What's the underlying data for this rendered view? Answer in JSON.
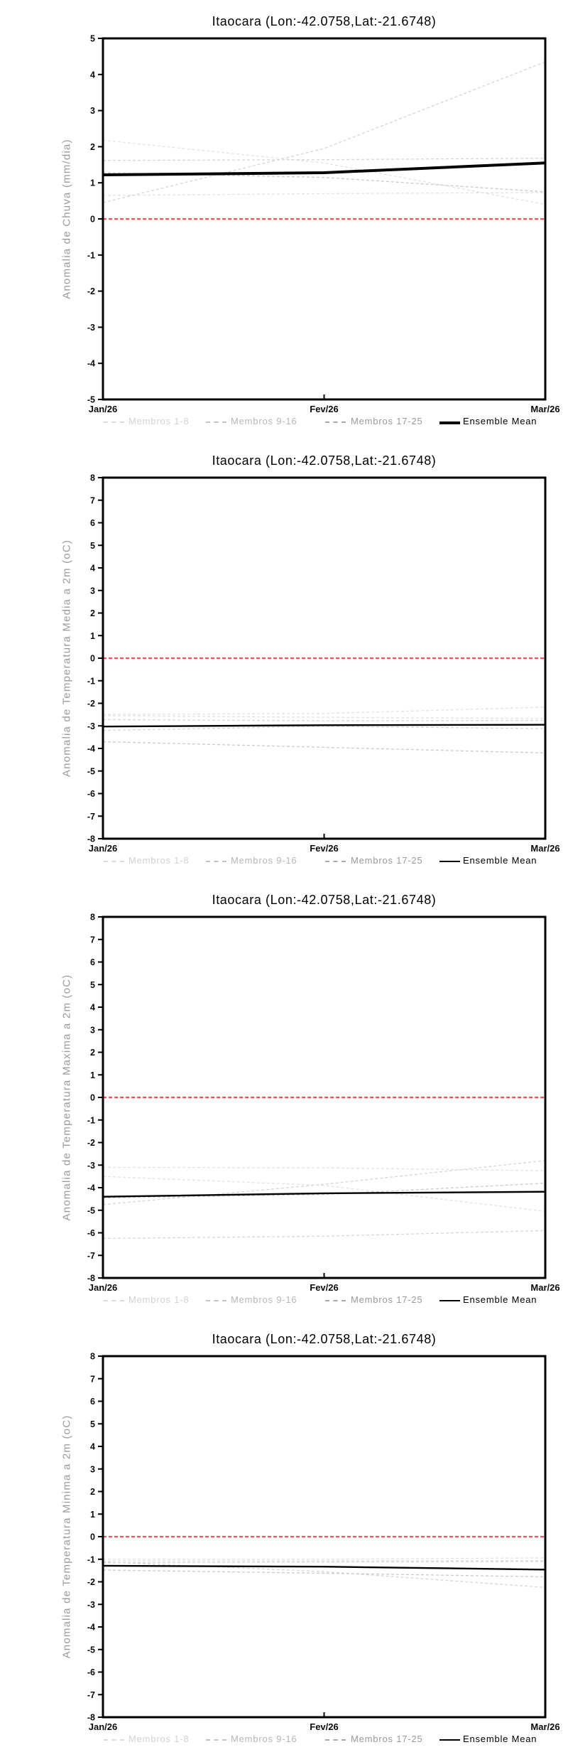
{
  "page": {
    "background": "#ffffff"
  },
  "legend": {
    "items": [
      {
        "label": "Membros 1-8",
        "line_color": "#dcdcdc",
        "text_color": "#d2d2d2",
        "style": "dashed"
      },
      {
        "label": "Membros 9-16",
        "line_color": "#c3c3c3",
        "text_color": "#b7b7b7",
        "style": "dashed"
      },
      {
        "label": "Membros 17-25",
        "line_color": "#a9a9a9",
        "text_color": "#9a9a9a",
        "style": "dashed"
      },
      {
        "label": "Ensemble Mean",
        "line_color": "#000000",
        "text_color": "#000000",
        "style": "solid"
      }
    ]
  },
  "chart_data": [
    {
      "type": "line",
      "title": "Itaocara (Lon:-42.0758,Lat:-21.6748)",
      "ylabel": "Anomalia de Chuva (mm/dia)",
      "ylim": [
        -5,
        5
      ],
      "ytick_step": 1,
      "x": [
        "Jan/26",
        "Fev/26",
        "Mar/26"
      ],
      "zero_line": {
        "value": 0,
        "color": "#f85454"
      },
      "mean_line_width": 4,
      "grid": false,
      "legend_position": "bottom",
      "series": [
        {
          "name": "member",
          "group": "Membros 1-8",
          "color": "#e2e2e2",
          "dashed": true,
          "values": [
            2.18,
            1.55,
            0.4
          ]
        },
        {
          "name": "member",
          "group": "Membros 1-8",
          "color": "#e2e2e2",
          "dashed": true,
          "values": [
            0.65,
            0.7,
            0.73
          ]
        },
        {
          "name": "member",
          "group": "Membros 9-16",
          "color": "#d6d6d6",
          "dashed": true,
          "values": [
            1.62,
            1.64,
            1.68
          ]
        },
        {
          "name": "member",
          "group": "Membros 9-16",
          "color": "#d6d6d6",
          "dashed": true,
          "values": [
            0.45,
            1.95,
            4.35
          ]
        },
        {
          "name": "member",
          "group": "Membros 17-25",
          "color": "#cacaca",
          "dashed": true,
          "values": [
            1.28,
            1.15,
            0.75
          ]
        },
        {
          "name": "Ensemble Mean",
          "color": "#000000",
          "dashed": false,
          "values": [
            1.22,
            1.28,
            1.55
          ]
        }
      ]
    },
    {
      "type": "line",
      "title": "Itaocara (Lon:-42.0758,Lat:-21.6748)",
      "ylabel": "Anomalia de Temperatura Media a 2m (oC)",
      "ylim": [
        -8,
        8
      ],
      "ytick_step": 1,
      "x": [
        "Jan/26",
        "Fev/26",
        "Mar/26"
      ],
      "zero_line": {
        "value": 0,
        "color": "#f85454"
      },
      "mean_line_width": 2.4,
      "grid": false,
      "legend_position": "bottom",
      "series": [
        {
          "name": "member",
          "group": "Membros 1-8",
          "color": "#e2e2e2",
          "dashed": true,
          "values": [
            -2.5,
            -2.45,
            -2.17
          ]
        },
        {
          "name": "member",
          "group": "Membros 1-8",
          "color": "#e2e2e2",
          "dashed": true,
          "values": [
            -2.55,
            -2.62,
            -2.68
          ]
        },
        {
          "name": "member",
          "group": "Membros 9-16",
          "color": "#d6d6d6",
          "dashed": true,
          "values": [
            -2.72,
            -2.78,
            -2.76
          ]
        },
        {
          "name": "member",
          "group": "Membros 9-16",
          "color": "#d6d6d6",
          "dashed": true,
          "values": [
            -3.2,
            -3.02,
            -3.12
          ]
        },
        {
          "name": "member",
          "group": "Membros 17-25",
          "color": "#cacaca",
          "dashed": true,
          "values": [
            -3.7,
            -3.95,
            -4.2
          ]
        },
        {
          "name": "Ensemble Mean",
          "color": "#000000",
          "dashed": false,
          "values": [
            -3.03,
            -2.97,
            -2.95
          ]
        }
      ]
    },
    {
      "type": "line",
      "title": "Itaocara (Lon:-42.0758,Lat:-21.6748)",
      "ylabel": "Anomalia de Temperatura Maxima a 2m (oC)",
      "ylim": [
        -8,
        8
      ],
      "ytick_step": 1,
      "x": [
        "Jan/26",
        "Fev/26",
        "Mar/26"
      ],
      "zero_line": {
        "value": 0,
        "color": "#f85454"
      },
      "mean_line_width": 2.4,
      "grid": false,
      "legend_position": "bottom",
      "series": [
        {
          "name": "member",
          "group": "Membros 1-8",
          "color": "#e2e2e2",
          "dashed": true,
          "values": [
            -3.1,
            -3.12,
            -3.25
          ]
        },
        {
          "name": "member",
          "group": "Membros 1-8",
          "color": "#e2e2e2",
          "dashed": true,
          "values": [
            -3.5,
            -3.9,
            -5.05
          ]
        },
        {
          "name": "member",
          "group": "Membros 9-16",
          "color": "#d6d6d6",
          "dashed": true,
          "values": [
            -4.75,
            -3.85,
            -2.8
          ]
        },
        {
          "name": "member",
          "group": "Membros 9-16",
          "color": "#d6d6d6",
          "dashed": true,
          "values": [
            -6.25,
            -6.15,
            -5.9
          ]
        },
        {
          "name": "member",
          "group": "Membros 17-25",
          "color": "#cacaca",
          "dashed": true,
          "values": [
            -4.45,
            -4.3,
            -3.8
          ]
        },
        {
          "name": "Ensemble Mean",
          "color": "#000000",
          "dashed": false,
          "values": [
            -4.4,
            -4.25,
            -4.18
          ]
        }
      ]
    },
    {
      "type": "line",
      "title": "Itaocara (Lon:-42.0758,Lat:-21.6748)",
      "ylabel": "Anomalia de Temperatura Minima a 2m (oC)",
      "ylim": [
        -8,
        8
      ],
      "ytick_step": 1,
      "x": [
        "Jan/26",
        "Fev/26",
        "Mar/26"
      ],
      "zero_line": {
        "value": 0,
        "color": "#f85454"
      },
      "mean_line_width": 2.4,
      "grid": false,
      "legend_position": "bottom",
      "series": [
        {
          "name": "member",
          "group": "Membros 1-8",
          "color": "#e2e2e2",
          "dashed": true,
          "values": [
            -1.0,
            -1.0,
            -0.94
          ]
        },
        {
          "name": "member",
          "group": "Membros 1-8",
          "color": "#e2e2e2",
          "dashed": true,
          "values": [
            -1.08,
            -1.07,
            -1.06
          ]
        },
        {
          "name": "member",
          "group": "Membros 9-16",
          "color": "#d6d6d6",
          "dashed": true,
          "values": [
            -1.16,
            -1.12,
            -1.1
          ]
        },
        {
          "name": "member",
          "group": "Membros 9-16",
          "color": "#d6d6d6",
          "dashed": true,
          "values": [
            -1.12,
            -1.55,
            -2.25
          ]
        },
        {
          "name": "member",
          "group": "Membros 17-25",
          "color": "#cacaca",
          "dashed": true,
          "values": [
            -1.48,
            -1.62,
            -1.78
          ]
        },
        {
          "name": "Ensemble Mean",
          "color": "#000000",
          "dashed": false,
          "values": [
            -1.29,
            -1.33,
            -1.46
          ]
        }
      ]
    }
  ]
}
